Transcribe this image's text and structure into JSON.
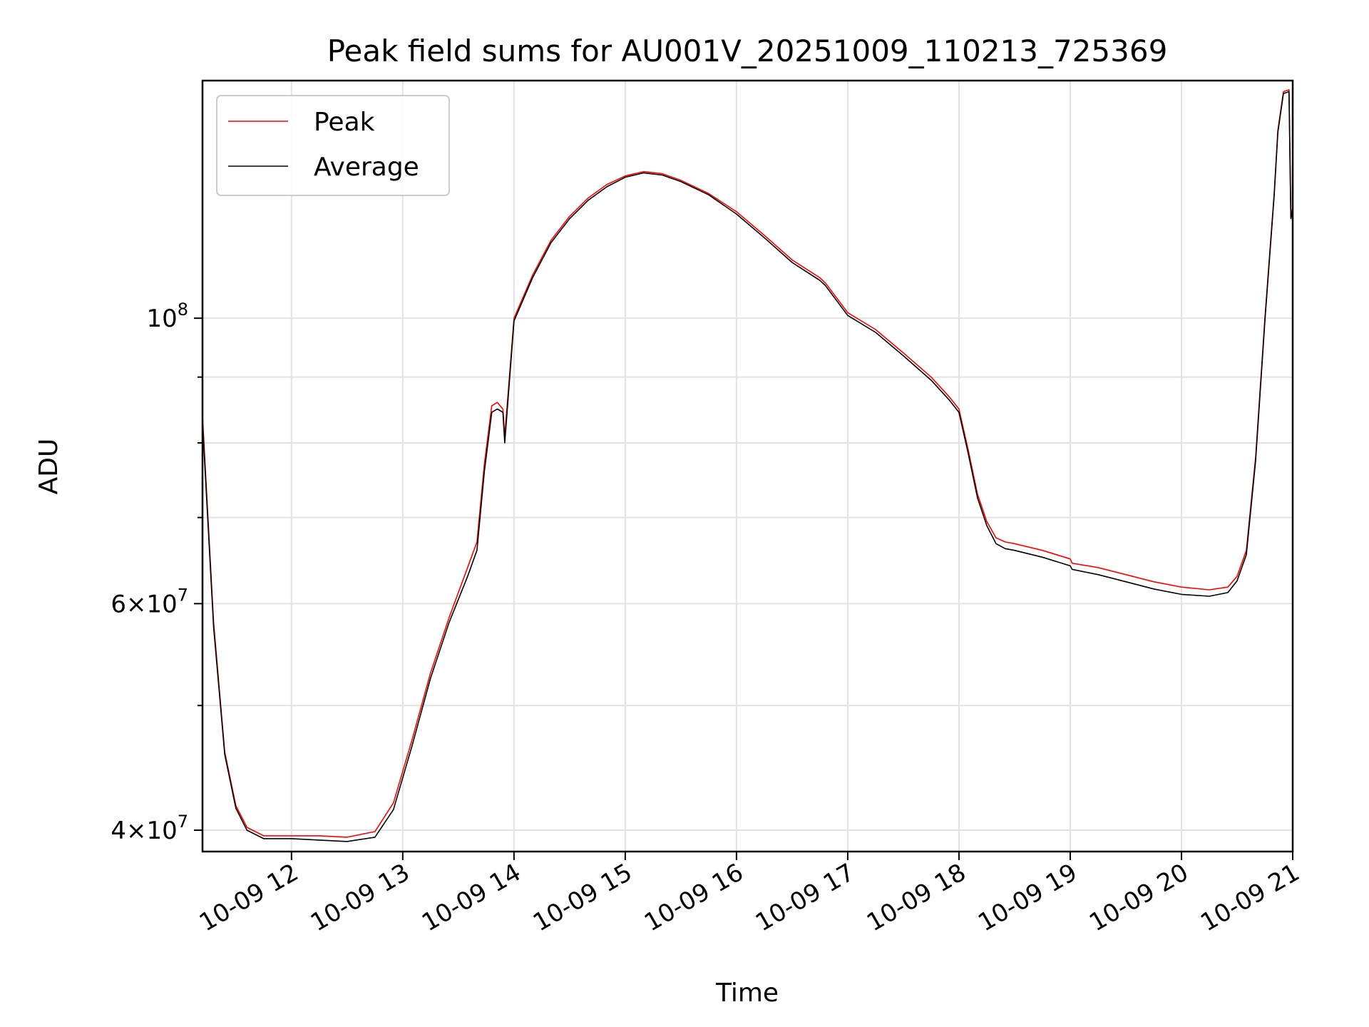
{
  "chart_data": {
    "type": "line",
    "title": "Peak field sums for AU001V_20251009_110213_725369",
    "xlabel": "Time",
    "ylabel": "ADU",
    "y_scale": "log",
    "xlim": [
      "2025-10-09T11:12",
      "2025-10-09T21:00"
    ],
    "ylim": [
      38500000,
      153000000
    ],
    "grid": true,
    "legend_position": "top-left",
    "x_ticks": [
      {
        "value": "2025-10-09T12:00",
        "label": "10-09 12"
      },
      {
        "value": "2025-10-09T13:00",
        "label": "10-09 13"
      },
      {
        "value": "2025-10-09T14:00",
        "label": "10-09 14"
      },
      {
        "value": "2025-10-09T15:00",
        "label": "10-09 15"
      },
      {
        "value": "2025-10-09T16:00",
        "label": "10-09 16"
      },
      {
        "value": "2025-10-09T17:00",
        "label": "10-09 17"
      },
      {
        "value": "2025-10-09T18:00",
        "label": "10-09 18"
      },
      {
        "value": "2025-10-09T19:00",
        "label": "10-09 19"
      },
      {
        "value": "2025-10-09T20:00",
        "label": "10-09 20"
      },
      {
        "value": "2025-10-09T21:00",
        "label": "10-09 21"
      }
    ],
    "y_major_ticks": [
      {
        "value": 100000000,
        "base": "10",
        "exp": "8",
        "mantissa": ""
      },
      {
        "value": 60000000,
        "base": "10",
        "exp": "7",
        "mantissa": "6"
      },
      {
        "value": 40000000,
        "base": "10",
        "exp": "7",
        "mantissa": "4"
      }
    ],
    "y_minor_ticks": [
      50000000,
      70000000,
      80000000,
      90000000
    ],
    "x": [
      "2025-10-09T11:12",
      "2025-10-09T11:18",
      "2025-10-09T11:24",
      "2025-10-09T11:30",
      "2025-10-09T11:36",
      "2025-10-09T11:45",
      "2025-10-09T12:00",
      "2025-10-09T12:15",
      "2025-10-09T12:30",
      "2025-10-09T12:45",
      "2025-10-09T12:55",
      "2025-10-09T13:05",
      "2025-10-09T13:15",
      "2025-10-09T13:25",
      "2025-10-09T13:35",
      "2025-10-09T13:40",
      "2025-10-09T13:44",
      "2025-10-09T13:48",
      "2025-10-09T13:51",
      "2025-10-09T13:54",
      "2025-10-09T13:55",
      "2025-10-09T14:00",
      "2025-10-09T14:10",
      "2025-10-09T14:20",
      "2025-10-09T14:30",
      "2025-10-09T14:40",
      "2025-10-09T14:50",
      "2025-10-09T15:00",
      "2025-10-09T15:10",
      "2025-10-09T15:20",
      "2025-10-09T15:30",
      "2025-10-09T15:45",
      "2025-10-09T16:00",
      "2025-10-09T16:15",
      "2025-10-09T16:30",
      "2025-10-09T16:45",
      "2025-10-09T16:48",
      "2025-10-09T17:00",
      "2025-10-09T17:15",
      "2025-10-09T17:30",
      "2025-10-09T17:45",
      "2025-10-09T17:55",
      "2025-10-09T18:00",
      "2025-10-09T18:05",
      "2025-10-09T18:10",
      "2025-10-09T18:15",
      "2025-10-09T18:20",
      "2025-10-09T18:25",
      "2025-10-09T18:30",
      "2025-10-09T18:45",
      "2025-10-09T19:00",
      "2025-10-09T19:01",
      "2025-10-09T19:15",
      "2025-10-09T19:30",
      "2025-10-09T19:45",
      "2025-10-09T20:00",
      "2025-10-09T20:15",
      "2025-10-09T20:25",
      "2025-10-09T20:30",
      "2025-10-09T20:35",
      "2025-10-09T20:40",
      "2025-10-09T20:45",
      "2025-10-09T20:50",
      "2025-10-09T20:52",
      "2025-10-09T20:55",
      "2025-10-09T20:58",
      "2025-10-09T20:59",
      "2025-10-09T21:00"
    ],
    "series": [
      {
        "name": "Peak",
        "color": "#ff0000",
        "values": [
          84000000,
          58000000,
          46000000,
          41800000,
          40200000,
          39600000,
          39600000,
          39600000,
          39500000,
          39900000,
          42000000,
          47000000,
          53000000,
          58500000,
          64000000,
          67000000,
          77000000,
          85500000,
          86000000,
          85000000,
          81000000,
          100000000,
          108000000,
          115000000,
          120000000,
          124000000,
          127000000,
          129000000,
          130000000,
          129500000,
          128000000,
          125000000,
          121000000,
          116000000,
          111000000,
          107500000,
          106500000,
          101000000,
          98000000,
          94000000,
          90000000,
          86800000,
          85000000,
          79000000,
          73000000,
          69500000,
          67500000,
          67000000,
          66800000,
          66000000,
          65000000,
          64500000,
          64000000,
          63200000,
          62400000,
          61800000,
          61500000,
          61800000,
          63000000,
          66000000,
          78000000,
          100000000,
          125000000,
          140000000,
          150000000,
          150500000,
          120000000,
          122000000
        ]
      },
      {
        "name": "Average",
        "color": "#000000",
        "values": [
          83000000,
          57500000,
          45800000,
          41600000,
          40000000,
          39400000,
          39400000,
          39300000,
          39200000,
          39500000,
          41500000,
          46500000,
          52500000,
          58000000,
          63000000,
          66000000,
          76000000,
          84500000,
          85000000,
          84500000,
          80000000,
          99500000,
          107500000,
          114500000,
          119500000,
          123500000,
          126500000,
          128700000,
          129700000,
          129200000,
          127700000,
          124700000,
          120500000,
          115500000,
          110500000,
          107000000,
          106000000,
          100500000,
          97500000,
          93500000,
          89500000,
          86300000,
          84500000,
          78500000,
          72500000,
          69000000,
          66800000,
          66200000,
          66000000,
          65200000,
          64200000,
          63800000,
          63200000,
          62400000,
          61600000,
          61000000,
          60800000,
          61200000,
          62500000,
          65500000,
          77500000,
          99500000,
          124500000,
          139500000,
          149500000,
          150000000,
          119500000,
          121500000
        ]
      }
    ]
  }
}
